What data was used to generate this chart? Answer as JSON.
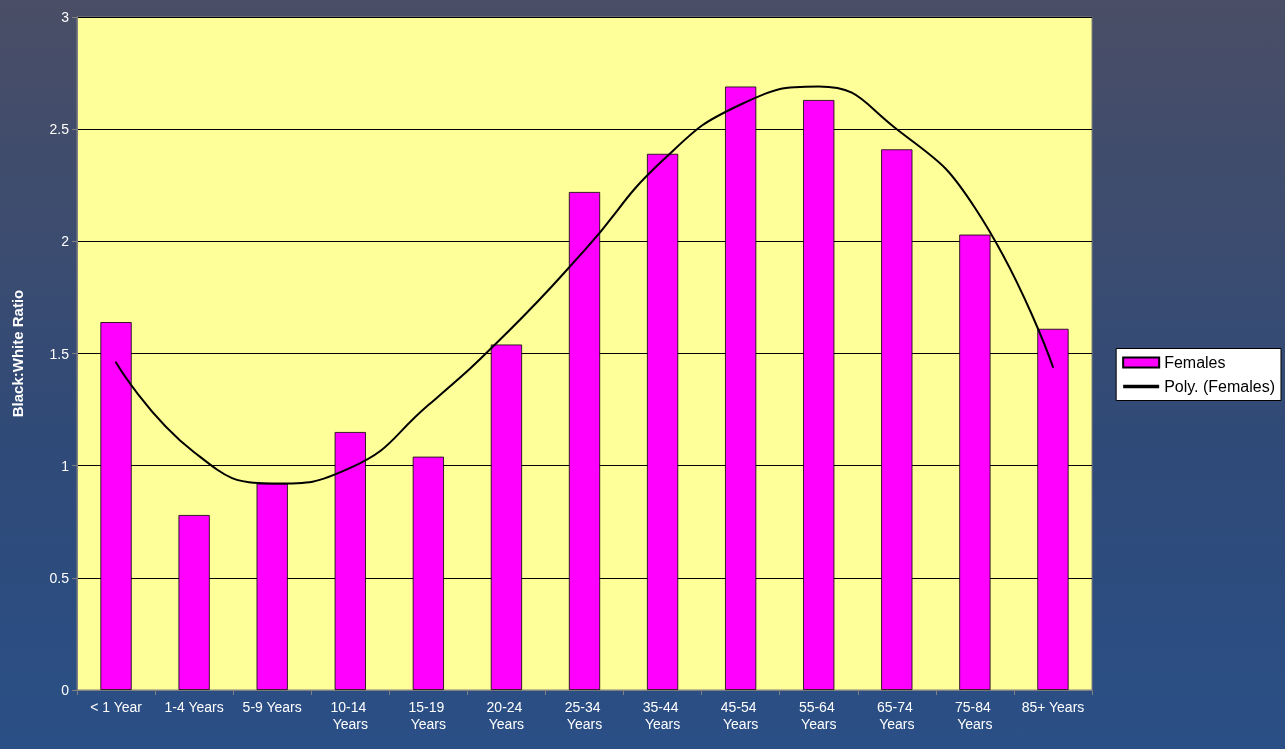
{
  "chart_data": {
    "type": "bar",
    "ylabel": "Black:White Ratio",
    "categories": [
      "< 1 Year",
      "1-4 Years",
      "5-9 Years",
      "10-14 Years",
      "15-19 Years",
      "20-24 Years",
      "25-34 Years",
      "35-44 Years",
      "45-54 Years",
      "55-64 Years",
      "65-74 Years",
      "75-84 Years",
      "85+ Years"
    ],
    "series": [
      {
        "name": "Females",
        "color": "#ff00ff",
        "values": [
          1.64,
          0.78,
          0.92,
          1.15,
          1.04,
          1.54,
          2.22,
          2.39,
          2.69,
          2.63,
          2.41,
          2.03,
          1.61
        ]
      },
      {
        "name": "Poly. (Females)",
        "type": "line",
        "color": "#000000",
        "values": [
          1.46,
          1.06,
          0.92,
          0.99,
          1.27,
          1.59,
          1.96,
          2.36,
          2.61,
          2.69,
          2.5,
          2.15,
          1.44
        ]
      }
    ],
    "ylim": [
      0,
      3
    ],
    "yticks": [
      0,
      0.5,
      1,
      1.5,
      2,
      2.5,
      3
    ],
    "grid": "y",
    "legend": "right",
    "marker": "none",
    "line_style": "solid"
  }
}
